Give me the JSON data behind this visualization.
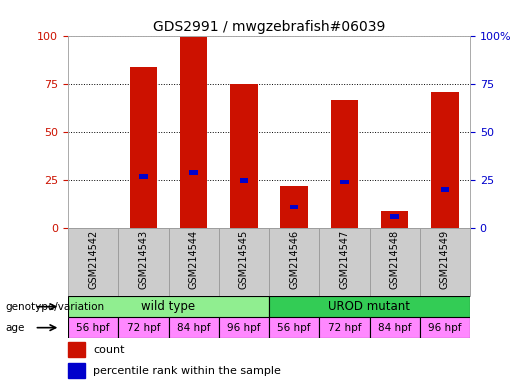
{
  "title": "GDS2991 / mwgzebrafish#06039",
  "samples": [
    "GSM214542",
    "GSM214543",
    "GSM214544",
    "GSM214545",
    "GSM214546",
    "GSM214547",
    "GSM214548",
    "GSM214549"
  ],
  "count_values": [
    0,
    84,
    100,
    75,
    22,
    67,
    9,
    71
  ],
  "percentile_values": [
    0,
    27,
    29,
    25,
    11,
    24,
    6,
    20
  ],
  "genotype_groups": [
    {
      "label": "wild type",
      "start": 0,
      "end": 4,
      "color": "#90ee90"
    },
    {
      "label": "UROD mutant",
      "start": 4,
      "end": 8,
      "color": "#33cc55"
    }
  ],
  "age_labels": [
    "56 hpf",
    "72 hpf",
    "84 hpf",
    "96 hpf",
    "56 hpf",
    "72 hpf",
    "84 hpf",
    "96 hpf"
  ],
  "age_color": "#ff88ff",
  "bar_color": "#cc1100",
  "percentile_color": "#0000cc",
  "ylim": [
    0,
    100
  ],
  "yticks": [
    0,
    25,
    50,
    75,
    100
  ],
  "ytick_labels_right": [
    "0",
    "25",
    "50",
    "75",
    "100%"
  ],
  "background_color": "#ffffff",
  "plot_bg_color": "#ffffff",
  "grid_color": "#000000",
  "title_fontsize": 10,
  "tick_label_color_left": "#cc1100",
  "tick_label_color_right": "#0000cc"
}
